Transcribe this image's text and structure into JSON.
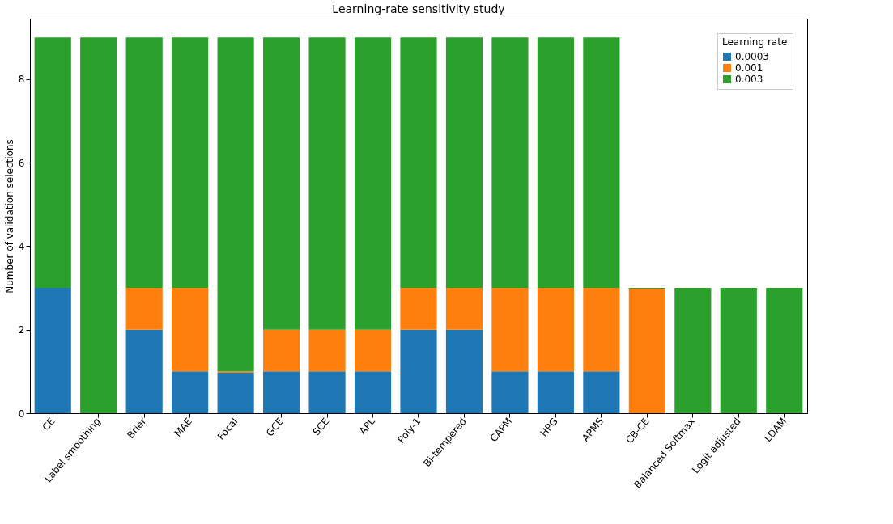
{
  "chart_data": {
    "type": "bar",
    "title": "Learning-rate sensitivity study",
    "ylabel": "Number of validation selections",
    "legend_title": "Learning rate",
    "stacked": true,
    "legend": "top right",
    "grid": false,
    "categories": [
      "CE",
      "Label smoothing",
      "Brier",
      "MAE",
      "Focal",
      "GCE",
      "SCE",
      "APL",
      "Poly-1",
      "Bi-tempered",
      "CAPM",
      "HPG",
      "APMS",
      "CB-CE",
      "Balanced Softmax",
      "Logit adjusted",
      "LDAM"
    ],
    "series": [
      {
        "name": "0.0003",
        "color": "#1f77b4",
        "values": [
          3,
          0,
          2,
          1,
          0.97,
          1,
          1,
          1,
          2,
          2,
          1,
          1,
          1,
          0,
          0,
          0,
          0
        ]
      },
      {
        "name": "0.001",
        "color": "#ff7f0e",
        "values": [
          0,
          0,
          1,
          2,
          0.03,
          1,
          1,
          1,
          1,
          1,
          2,
          2,
          2,
          2.98,
          0,
          0,
          0
        ]
      },
      {
        "name": "0.003",
        "color": "#2ca02c",
        "values": [
          6,
          9,
          6,
          6,
          8,
          7,
          7,
          7,
          6,
          6,
          6,
          6,
          6,
          0.02,
          3,
          3,
          3
        ]
      }
    ],
    "ylim": [
      0,
      9.45
    ],
    "yticks": [
      0,
      2,
      4,
      6,
      8
    ]
  }
}
